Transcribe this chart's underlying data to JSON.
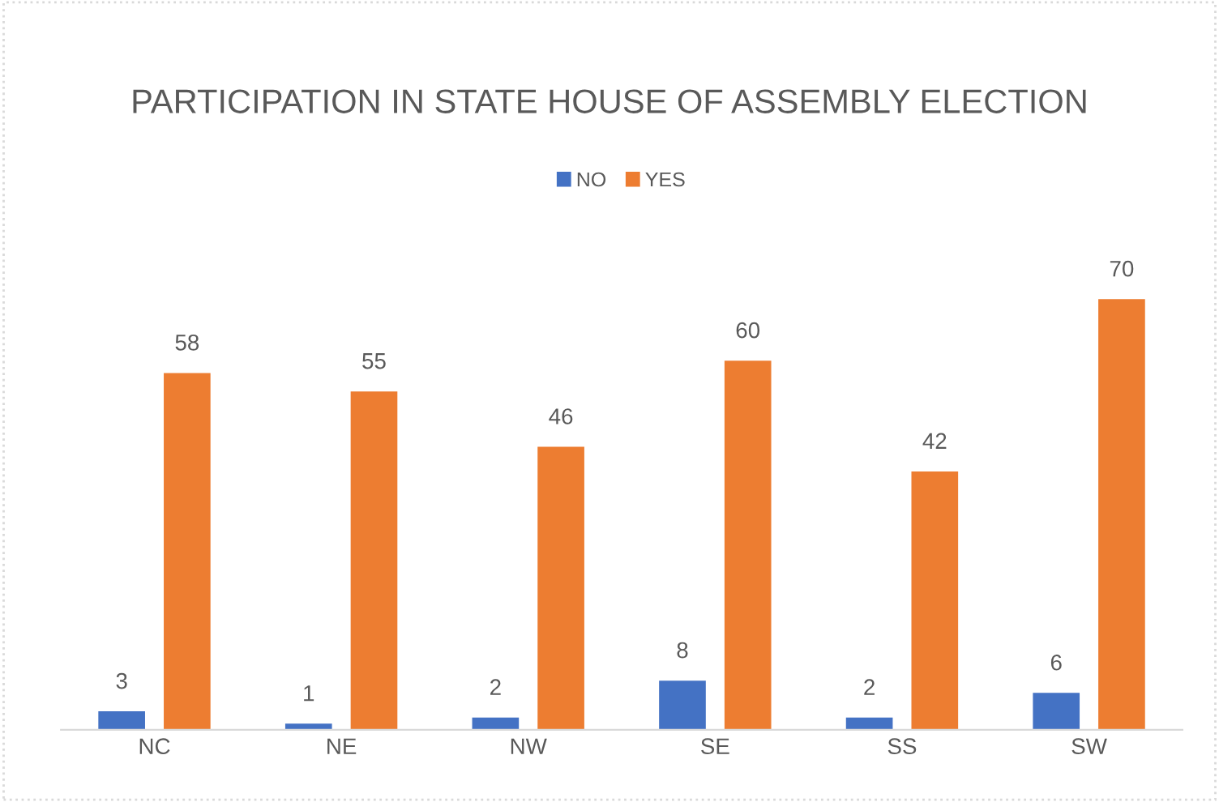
{
  "chart_data": {
    "type": "bar",
    "title": "PARTICIPATION IN STATE HOUSE OF ASSEMBLY ELECTION",
    "categories": [
      "NC",
      "NE",
      "NW",
      "SE",
      "SS",
      "SW"
    ],
    "series": [
      {
        "name": "NO",
        "color": "#4472c4",
        "values": [
          3,
          1,
          2,
          8,
          2,
          6
        ]
      },
      {
        "name": "YES",
        "color": "#ed7d31",
        "values": [
          58,
          55,
          46,
          60,
          42,
          70
        ]
      }
    ],
    "data_labels": true,
    "legend": "top",
    "grid": false,
    "tick_labels": "x"
  }
}
